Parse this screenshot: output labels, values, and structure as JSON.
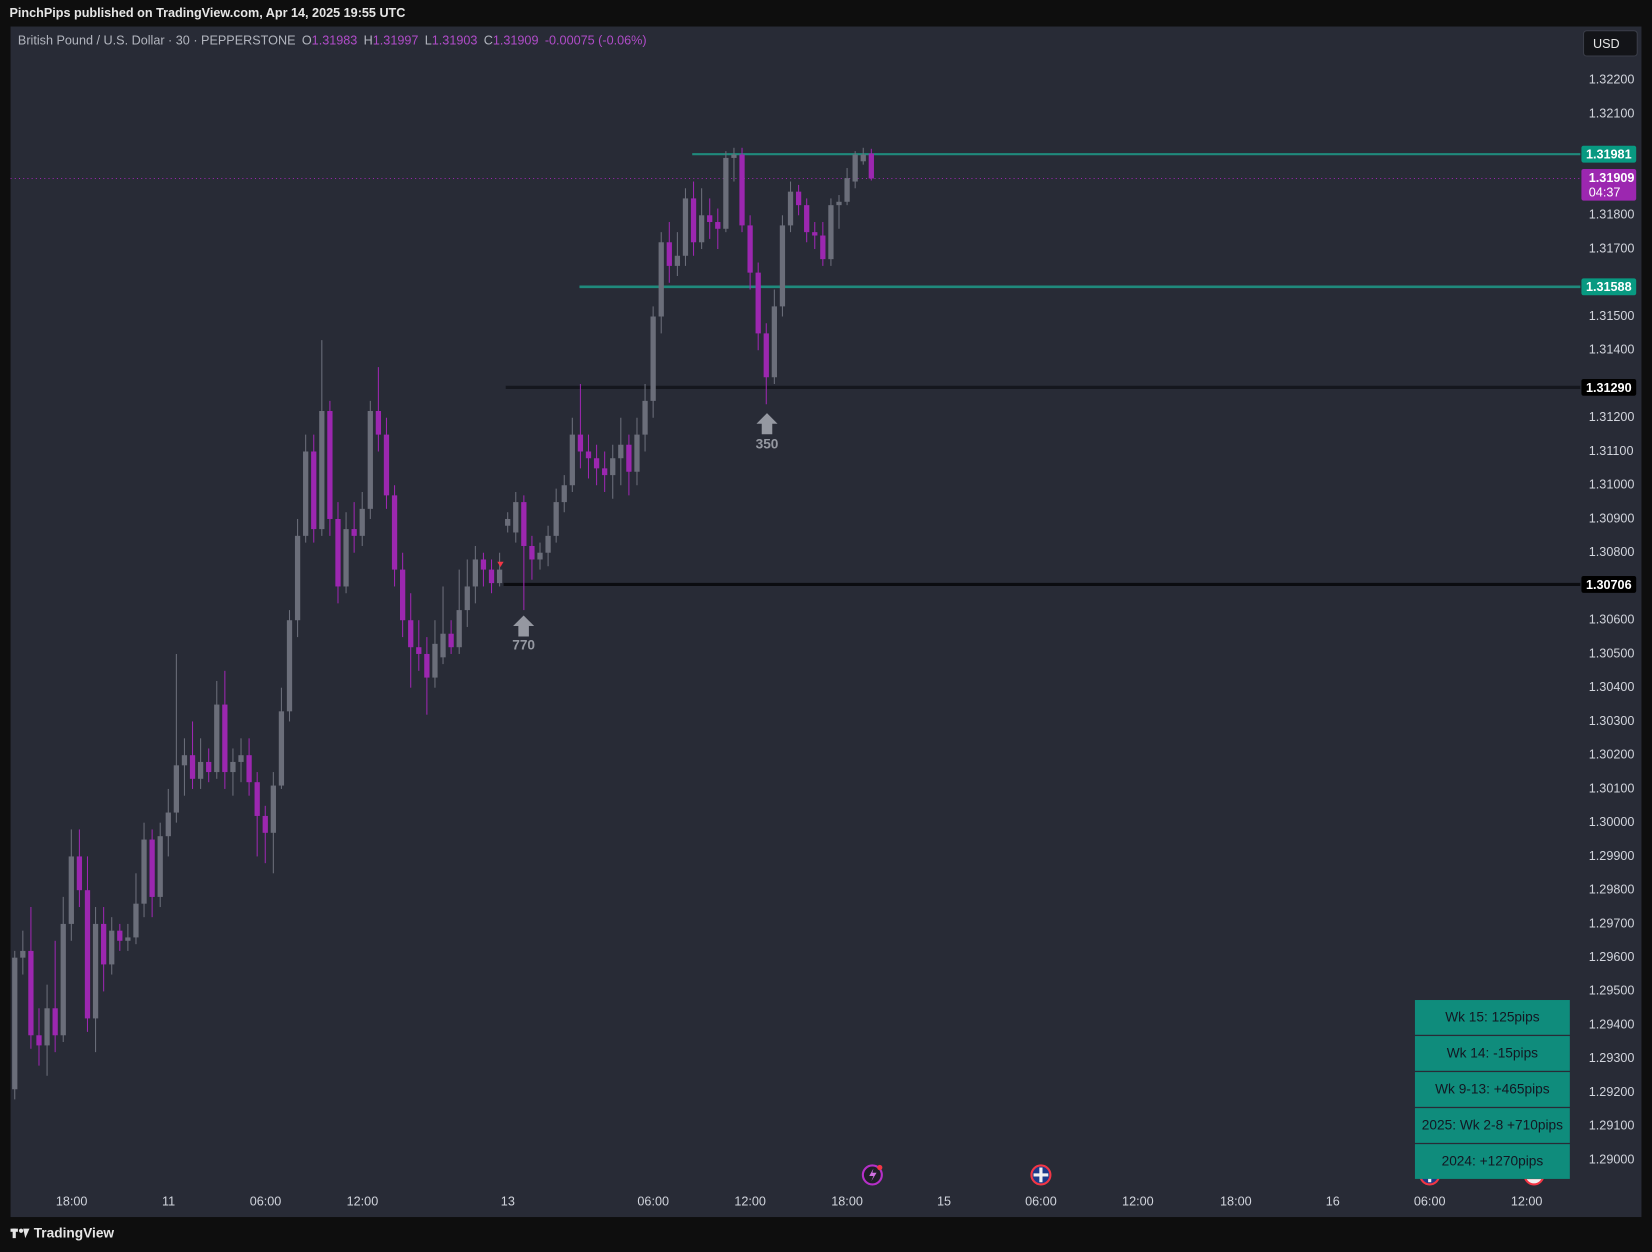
{
  "header": {
    "publisher": "PinchPips published on TradingView.com, Apr 14, 2025 19:55 UTC",
    "currency_button": "USD",
    "footer_brand": "TradingView"
  },
  "chart_data": {
    "type": "candlestick",
    "title": "British Pound / U.S. Dollar · 30 · PEPPERSTONE",
    "ohlc_labels": [
      "O",
      "H",
      "L",
      "C"
    ],
    "change": "-0.00075 (-0.06%)",
    "countdown": "04:37",
    "colors": {
      "up": "#6b6e7a",
      "down": "#9c27b0"
    },
    "open": [
      1.2921,
      1.296,
      1.2962,
      1.2937,
      1.2934,
      1.2945,
      1.2937,
      1.297,
      1.299,
      1.298,
      1.2942,
      1.297,
      1.2958,
      1.2968,
      1.2965,
      1.2966,
      1.2976,
      1.2995,
      1.2978,
      1.2996,
      1.3003,
      1.3017,
      1.302,
      1.3013,
      1.3018,
      1.3015,
      1.3035,
      1.3015,
      1.3018,
      1.302,
      1.3012,
      1.3002,
      1.2997,
      1.3011,
      1.3033,
      1.306,
      1.3085,
      1.311,
      1.3087,
      1.3122,
      1.309,
      1.307,
      1.3087,
      1.3085,
      1.3093,
      1.3122,
      1.3115,
      1.3097,
      1.3075,
      1.306,
      1.3052,
      1.305,
      1.3043,
      1.3049,
      1.3056,
      1.3052,
      1.3063,
      1.307,
      1.3078,
      1.3075,
      1.3071,
      1.3088,
      1.3086,
      1.3095,
      1.3082,
      1.3078,
      1.308,
      1.3085,
      1.3095,
      1.31,
      1.3115,
      1.311,
      1.3108,
      1.3105,
      1.3103,
      1.3108,
      1.3112,
      1.3104,
      1.3115,
      1.3125,
      1.315,
      1.3172,
      1.3165,
      1.3168,
      1.3185,
      1.3172,
      1.318,
      1.3178,
      1.3176,
      1.3197,
      1.3198,
      1.3177,
      1.3163,
      1.3145,
      1.3132,
      1.3153,
      1.3177,
      1.3187,
      1.3183,
      1.3175,
      1.3174,
      1.3167,
      1.3183,
      1.3184,
      1.319,
      1.3196,
      1.31983
    ],
    "high": [
      1.2962,
      1.2968,
      1.2975,
      1.2945,
      1.2952,
      1.2965,
      1.2978,
      1.2998,
      1.2998,
      1.299,
      1.2975,
      1.2975,
      1.2972,
      1.297,
      1.297,
      1.2985,
      1.3,
      1.2998,
      1.3,
      1.301,
      1.305,
      1.3025,
      1.303,
      1.3025,
      1.3022,
      1.3042,
      1.3045,
      1.3022,
      1.3025,
      1.3025,
      1.3015,
      1.3005,
      1.3015,
      1.304,
      1.3063,
      1.309,
      1.3115,
      1.3115,
      1.3143,
      1.3125,
      1.3095,
      1.3092,
      1.3095,
      1.3098,
      1.3125,
      1.3135,
      1.312,
      1.31,
      1.308,
      1.3068,
      1.306,
      1.3055,
      1.306,
      1.307,
      1.306,
      1.3075,
      1.3078,
      1.3082,
      1.308,
      1.3078,
      1.308,
      1.3092,
      1.3098,
      1.3097,
      1.3085,
      1.3083,
      1.3088,
      1.3099,
      1.3103,
      1.312,
      1.313,
      1.3115,
      1.3112,
      1.311,
      1.3112,
      1.312,
      1.3115,
      1.312,
      1.313,
      1.3153,
      1.3175,
      1.3178,
      1.3175,
      1.3188,
      1.319,
      1.3188,
      1.3185,
      1.3182,
      1.3199,
      1.32,
      1.32,
      1.318,
      1.3166,
      1.3148,
      1.3158,
      1.318,
      1.319,
      1.3189,
      1.3185,
      1.3178,
      1.3178,
      1.3185,
      1.3186,
      1.3194,
      1.3199,
      1.32,
      1.31997
    ],
    "low": [
      1.2918,
      1.2955,
      1.2933,
      1.2928,
      1.2925,
      1.2932,
      1.2935,
      1.2965,
      1.2975,
      1.2938,
      1.2932,
      1.295,
      1.2955,
      1.2962,
      1.2962,
      1.2964,
      1.2972,
      1.2972,
      1.2975,
      1.299,
      1.3,
      1.3008,
      1.301,
      1.301,
      1.3012,
      1.3013,
      1.301,
      1.3008,
      1.3012,
      1.3008,
      1.299,
      1.2988,
      1.2985,
      1.301,
      1.303,
      1.3055,
      1.3083,
      1.3083,
      1.3085,
      1.3085,
      1.3065,
      1.3068,
      1.308,
      1.3082,
      1.309,
      1.311,
      1.3093,
      1.307,
      1.3055,
      1.304,
      1.3045,
      1.3032,
      1.304,
      1.3047,
      1.305,
      1.305,
      1.3058,
      1.3065,
      1.307,
      1.3068,
      1.307,
      1.3086,
      1.3083,
      1.3063,
      1.3072,
      1.3075,
      1.3076,
      1.3083,
      1.3092,
      1.3098,
      1.3105,
      1.3102,
      1.31,
      1.3098,
      1.3096,
      1.31,
      1.3097,
      1.31,
      1.311,
      1.312,
      1.3145,
      1.316,
      1.3162,
      1.3165,
      1.3168,
      1.317,
      1.3173,
      1.317,
      1.3175,
      1.319,
      1.3175,
      1.3158,
      1.314,
      1.3124,
      1.313,
      1.315,
      1.3175,
      1.318,
      1.3172,
      1.317,
      1.3165,
      1.3165,
      1.3176,
      1.3183,
      1.3188,
      1.3195,
      1.31903
    ],
    "close": [
      1.296,
      1.2962,
      1.2937,
      1.2934,
      1.2945,
      1.2937,
      1.297,
      1.299,
      1.298,
      1.2942,
      1.297,
      1.2958,
      1.2968,
      1.2965,
      1.2966,
      1.2976,
      1.2995,
      1.2978,
      1.2996,
      1.3003,
      1.3017,
      1.302,
      1.3013,
      1.3018,
      1.3015,
      1.3035,
      1.3015,
      1.3018,
      1.302,
      1.3012,
      1.3002,
      1.2997,
      1.3011,
      1.3033,
      1.306,
      1.3085,
      1.311,
      1.3087,
      1.3122,
      1.309,
      1.307,
      1.3087,
      1.3085,
      1.3093,
      1.3122,
      1.3115,
      1.3097,
      1.3075,
      1.306,
      1.3052,
      1.305,
      1.3043,
      1.3053,
      1.3056,
      1.3052,
      1.3063,
      1.307,
      1.3078,
      1.3075,
      1.3071,
      1.3075,
      1.309,
      1.3095,
      1.3082,
      1.3078,
      1.308,
      1.3085,
      1.3095,
      1.31,
      1.3115,
      1.311,
      1.3108,
      1.3105,
      1.3103,
      1.3108,
      1.3112,
      1.3104,
      1.3115,
      1.3125,
      1.315,
      1.3172,
      1.3165,
      1.3168,
      1.3185,
      1.3172,
      1.318,
      1.3178,
      1.3176,
      1.3197,
      1.3198,
      1.3177,
      1.3163,
      1.3145,
      1.3132,
      1.3153,
      1.3177,
      1.3187,
      1.3183,
      1.3175,
      1.3174,
      1.3167,
      1.3183,
      1.3184,
      1.3191,
      1.3198,
      1.3198,
      1.31909
    ],
    "x_labels": [
      "18:00",
      "11",
      "06:00",
      "12:00",
      "13",
      "06:00",
      "12:00",
      "18:00",
      "15",
      "06:00",
      "12:00",
      "18:00",
      "16",
      "06:00",
      "12:00"
    ],
    "ylim": [
      1.2891,
      1.3235
    ],
    "yticks": [
      {
        "value": 1.322,
        "label": "1.32200"
      },
      {
        "value": 1.321,
        "label": "1.32100"
      },
      {
        "value": 1.318,
        "label": "1.31800"
      },
      {
        "value": 1.317,
        "label": "1.31700"
      },
      {
        "value": 1.315,
        "label": "1.31500"
      },
      {
        "value": 1.314,
        "label": "1.31400"
      },
      {
        "value": 1.312,
        "label": "1.31200"
      },
      {
        "value": 1.311,
        "label": "1.31100"
      },
      {
        "value": 1.31,
        "label": "1.31000"
      },
      {
        "value": 1.309,
        "label": "1.30900"
      },
      {
        "value": 1.308,
        "label": "1.30800"
      },
      {
        "value": 1.306,
        "label": "1.30600"
      },
      {
        "value": 1.305,
        "label": "1.30500"
      },
      {
        "value": 1.304,
        "label": "1.30400"
      },
      {
        "value": 1.303,
        "label": "1.30300"
      },
      {
        "value": 1.302,
        "label": "1.30200"
      },
      {
        "value": 1.301,
        "label": "1.30100"
      },
      {
        "value": 1.3,
        "label": "1.30000"
      },
      {
        "value": 1.299,
        "label": "1.29900"
      },
      {
        "value": 1.298,
        "label": "1.29800"
      },
      {
        "value": 1.297,
        "label": "1.29700"
      },
      {
        "value": 1.296,
        "label": "1.29600"
      },
      {
        "value": 1.295,
        "label": "1.29500"
      },
      {
        "value": 1.294,
        "label": "1.29400"
      },
      {
        "value": 1.293,
        "label": "1.29300"
      },
      {
        "value": 1.292,
        "label": "1.29200"
      },
      {
        "value": 1.291,
        "label": "1.29100"
      },
      {
        "value": 1.29,
        "label": "1.29000"
      }
    ],
    "grid": false,
    "levels": {
      "values": [
        1.31981,
        1.31588,
        1.3129,
        1.30706
      ],
      "value_labels": [
        "1.31981",
        "1.31588",
        "1.31290",
        "1.30706"
      ],
      "colors": [
        "#1f8a7c",
        "#1f8a7c",
        "#15171e",
        "#0b0c10"
      ],
      "label_colors": [
        "#089981",
        "#089981",
        "#000000",
        "#000000"
      ]
    },
    "annotations": [
      {
        "text": "350"
      },
      {
        "text": "770"
      }
    ],
    "stats_table": [
      "Wk 15: 125pips",
      "Wk 14: -15pips",
      "Wk 9-13: +465pips",
      "2025: Wk 2-8  +710pips",
      "2024: +1270pips"
    ]
  }
}
